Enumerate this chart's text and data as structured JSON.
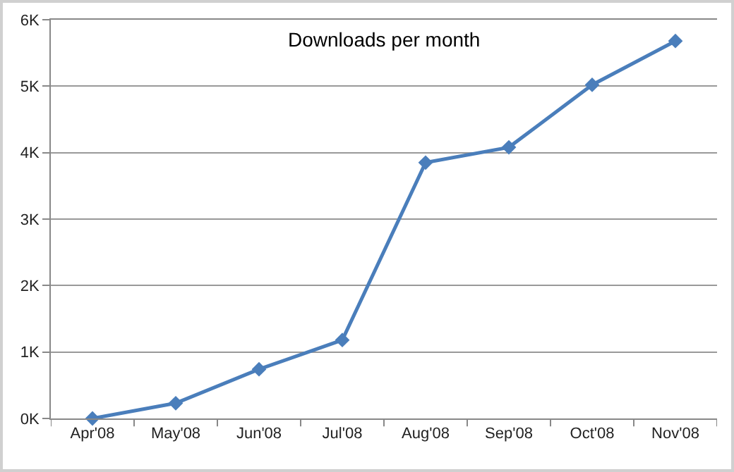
{
  "chart_data": {
    "type": "line",
    "title": "Downloads per month",
    "categories": [
      "Apr'08",
      "May'08",
      "Jun'08",
      "Jul'08",
      "Aug'08",
      "Sep'08",
      "Oct'08",
      "Nov'08"
    ],
    "series": [
      {
        "color": "#4a7ebb",
        "values": [
          0,
          230,
          740,
          1180,
          3850,
          4080,
          5020,
          5680
        ]
      }
    ],
    "ylim": [
      0,
      6000
    ],
    "yticks": [
      {
        "value": 0,
        "label": "0K"
      },
      {
        "value": 1000,
        "label": "1K"
      },
      {
        "value": 2000,
        "label": "2K"
      },
      {
        "value": 3000,
        "label": "3K"
      },
      {
        "value": 4000,
        "label": "4K"
      },
      {
        "value": 5000,
        "label": "5K"
      },
      {
        "value": 6000,
        "label": "6K"
      }
    ],
    "grid": "y",
    "marker": "diamond",
    "line_style": "solid"
  }
}
